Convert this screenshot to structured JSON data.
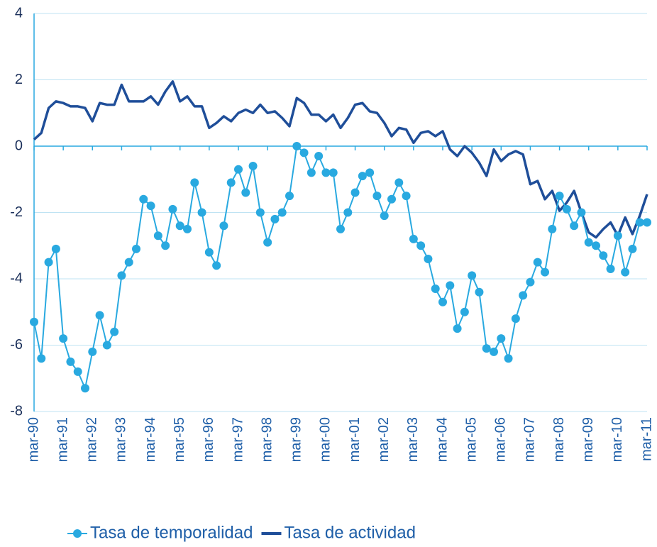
{
  "chart_data": {
    "type": "line",
    "categories": [
      "mar-90",
      null,
      null,
      null,
      "mar-91",
      null,
      null,
      null,
      "mar-92",
      null,
      null,
      null,
      "mar-93",
      null,
      null,
      null,
      "mar-94",
      null,
      null,
      null,
      "mar-95",
      null,
      null,
      null,
      "mar-96",
      null,
      null,
      null,
      "mar-97",
      null,
      null,
      null,
      "mar-98",
      null,
      null,
      null,
      "mar-99",
      null,
      null,
      null,
      "mar-00",
      null,
      null,
      null,
      "mar-01",
      null,
      null,
      null,
      "mar-02",
      null,
      null,
      null,
      "mar-03",
      null,
      null,
      null,
      "mar-04",
      null,
      null,
      null,
      "mar-05",
      null,
      null,
      null,
      "mar-06",
      null,
      null,
      null,
      "mar-07",
      null,
      null,
      null,
      "mar-08",
      null,
      null,
      null,
      "mar-09",
      null,
      null,
      null,
      "mar-10",
      null,
      null,
      null,
      "mar-11"
    ],
    "series": [
      {
        "name": "Tasa de temporalidad",
        "color": "#29a9e0",
        "markers": true,
        "values": [
          -5.3,
          -6.4,
          -3.5,
          -3.1,
          -5.8,
          -6.5,
          -6.8,
          -7.3,
          -6.2,
          -5.1,
          -6.0,
          -5.6,
          -3.9,
          -3.5,
          -3.1,
          -1.6,
          -1.8,
          -2.7,
          -3.0,
          -1.9,
          -2.4,
          -2.5,
          -1.1,
          -2.0,
          -3.2,
          -3.6,
          -2.4,
          -1.1,
          -0.7,
          -1.4,
          -0.6,
          -2.0,
          -2.9,
          -2.2,
          -2.0,
          -1.5,
          0.0,
          -0.2,
          -0.8,
          -0.3,
          -0.8,
          -0.8,
          -2.5,
          -2.0,
          -1.4,
          -0.9,
          -0.8,
          -1.5,
          -2.1,
          -1.6,
          -1.1,
          -1.5,
          -2.8,
          -3.0,
          -3.4,
          -4.3,
          -4.7,
          -4.2,
          -5.5,
          -5.0,
          -3.9,
          -4.4,
          -6.1,
          -6.2,
          -5.8,
          -6.4,
          -5.2,
          -4.5,
          -4.1,
          -3.5,
          -3.8,
          -2.5,
          -1.5,
          -1.9,
          -2.4,
          -2.0,
          -2.9,
          -3.0,
          -3.3,
          -3.7,
          -2.7,
          -3.8,
          -3.1,
          -2.3,
          -2.3
        ]
      },
      {
        "name": "Tasa de actividad",
        "color": "#1f4e99",
        "markers": false,
        "values": [
          0.2,
          0.4,
          1.15,
          1.35,
          1.3,
          1.2,
          1.2,
          1.15,
          0.75,
          1.3,
          1.25,
          1.25,
          1.85,
          1.35,
          1.35,
          1.35,
          1.5,
          1.25,
          1.65,
          1.95,
          1.35,
          1.5,
          1.2,
          1.2,
          0.55,
          0.7,
          0.9,
          0.75,
          1.0,
          1.1,
          1.0,
          1.25,
          1.0,
          1.05,
          0.85,
          0.6,
          1.45,
          1.3,
          0.95,
          0.95,
          0.75,
          0.95,
          0.55,
          0.85,
          1.25,
          1.3,
          1.05,
          1.0,
          0.7,
          0.3,
          0.55,
          0.5,
          0.1,
          0.4,
          0.45,
          0.3,
          0.45,
          -0.1,
          -0.3,
          0.0,
          -0.2,
          -0.5,
          -0.9,
          -0.1,
          -0.45,
          -0.25,
          -0.15,
          -0.25,
          -1.15,
          -1.05,
          -1.6,
          -1.35,
          -1.95,
          -1.7,
          -1.35,
          -2.0,
          -2.6,
          -2.75,
          -2.5,
          -2.3,
          -2.7,
          -2.15,
          -2.65,
          -2.1,
          -1.45
        ]
      }
    ],
    "ylim": [
      -8,
      4
    ],
    "yticks": [
      -8,
      -6,
      -4,
      -2,
      0,
      2,
      4
    ],
    "grid": true
  }
}
